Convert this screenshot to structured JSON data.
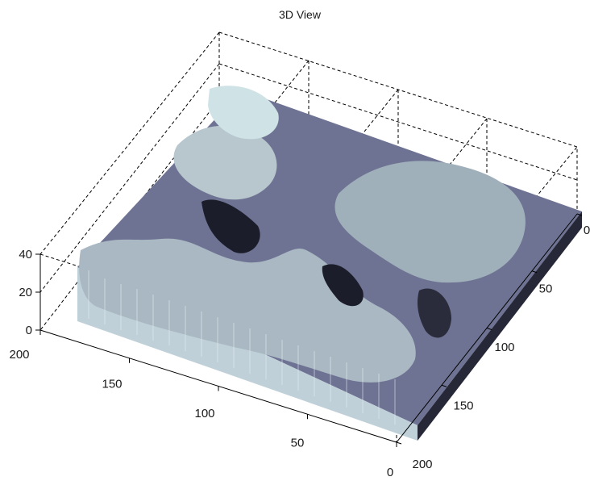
{
  "chart_data": {
    "type": "surface",
    "title": "3D View",
    "xlabel": "",
    "ylabel": "",
    "zlabel": "",
    "axes": {
      "x": {
        "ticks": [
          200,
          150,
          100,
          50,
          0
        ],
        "labels": [
          "200",
          "150",
          "100",
          "50",
          "0"
        ],
        "range": [
          0,
          200
        ]
      },
      "y": {
        "ticks": [
          0,
          50,
          100,
          150,
          200
        ],
        "labels": [
          "0",
          "50",
          "100",
          "150",
          "200"
        ],
        "range": [
          0,
          200
        ]
      },
      "z": {
        "ticks": [
          0,
          20,
          40
        ],
        "labels": [
          "0",
          "20",
          "40"
        ],
        "range": [
          0,
          40
        ]
      }
    },
    "box": "dashed",
    "colormap": [
      "#1c1d2a",
      "#6f7393",
      "#a9b8c2",
      "#cfe3e6"
    ]
  }
}
